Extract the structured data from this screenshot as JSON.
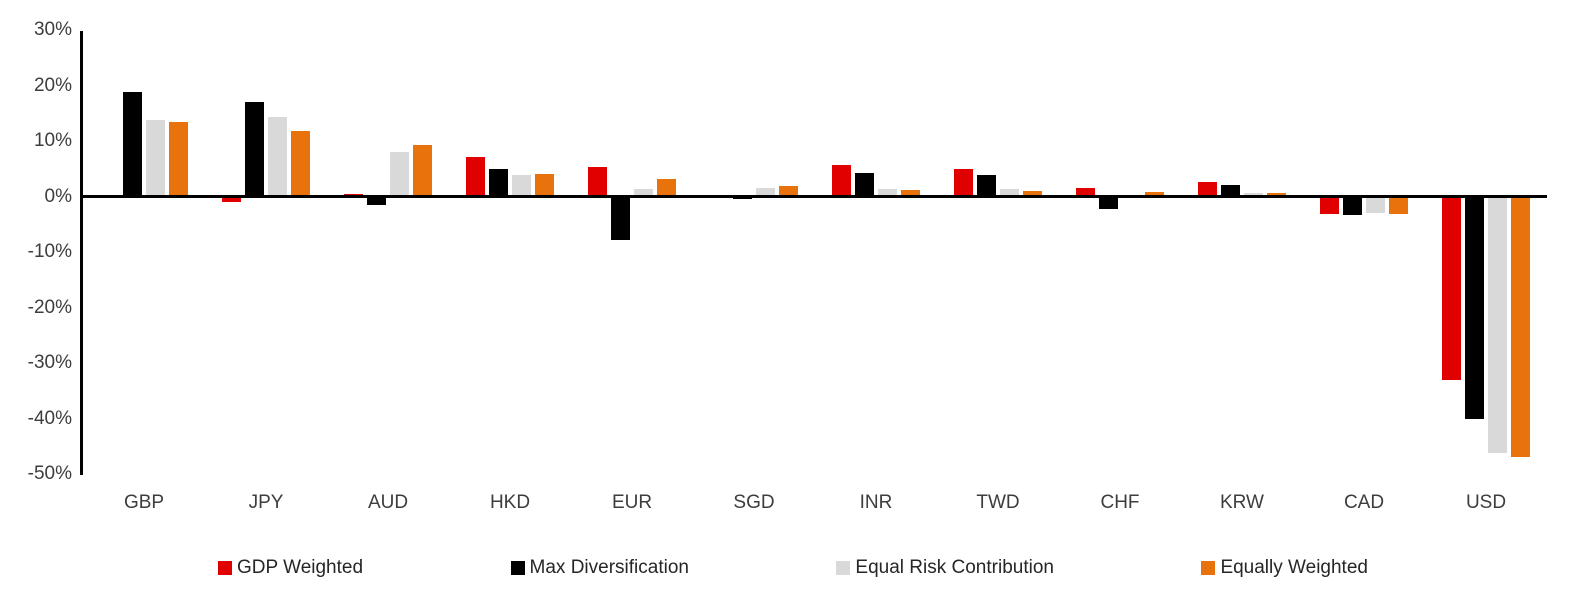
{
  "chart_data": {
    "type": "bar",
    "title": "",
    "xlabel": "",
    "ylabel": "",
    "ylim": [
      -50,
      30
    ],
    "ytick_step": 10,
    "yticks": [
      30,
      20,
      10,
      0,
      -10,
      -20,
      -30,
      -40,
      -50
    ],
    "ytick_labels": [
      "30%",
      "20%",
      "10%",
      "0%",
      "-10%",
      "-20%",
      "-30%",
      "-40%",
      "-50%"
    ],
    "grid": false,
    "legend_position": "bottom",
    "categories": [
      "GBP",
      "JPY",
      "AUD",
      "HKD",
      "EUR",
      "SGD",
      "INR",
      "TWD",
      "CHF",
      "KRW",
      "CAD",
      "USD"
    ],
    "series": [
      {
        "name": "GDP Weighted",
        "color": "#e00000",
        "values": [
          0.3,
          -1.0,
          0.4,
          7.2,
          5.4,
          -0.2,
          5.6,
          4.9,
          1.6,
          2.6,
          -3.1,
          -33.0
        ]
      },
      {
        "name": "Max Diversification",
        "color": "#000000",
        "values": [
          18.8,
          17.0,
          -1.6,
          5.0,
          -7.9,
          -0.5,
          4.3,
          3.8,
          -2.2,
          2.0,
          -3.3,
          -40.0
        ]
      },
      {
        "name": "Equal Risk Contribution",
        "color": "#d9d9d9",
        "values": [
          13.8,
          14.3,
          8.0,
          3.9,
          1.3,
          1.6,
          1.4,
          1.3,
          0.1,
          0.6,
          -2.9,
          -46.3
        ]
      },
      {
        "name": "Equally Weighted",
        "color": "#e8730d",
        "values": [
          13.4,
          11.8,
          9.3,
          4.0,
          3.1,
          1.9,
          1.1,
          1.0,
          0.8,
          0.7,
          -3.1,
          -47.0
        ]
      }
    ]
  }
}
